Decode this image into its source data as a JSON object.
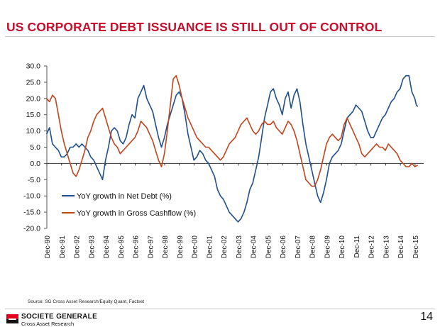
{
  "header": {
    "title": "US CORPORATE DEBT ISSUANCE IS STILL OUT OF CONTROL"
  },
  "footer": {
    "source": "Source: SG Cross Asset Research/Equity Quant, Factset",
    "brand": "SOCIETE GENERALE",
    "brand_sub": "Cross Asset Research",
    "page_number": "14"
  },
  "colors": {
    "title": "#c8102e",
    "net_debt": "#1f4e8c",
    "gross_cashflow": "#c0441c"
  },
  "chart_data": {
    "type": "line",
    "title": "",
    "xlabel": "",
    "ylabel": "",
    "ylim": [
      -20,
      30
    ],
    "xlim": [
      1990.917,
      2016.5
    ],
    "grid": false,
    "legend": "inside-lower-left",
    "y_ticks": [
      "30.0",
      "25.0",
      "20.0",
      "15.0",
      "10.0",
      "5.0",
      "0.0",
      "-5.0",
      "-10.0",
      "-15.0",
      "-20.0"
    ],
    "y_tick_values": [
      30,
      25,
      20,
      15,
      10,
      5,
      0,
      -5,
      -10,
      -15,
      -20
    ],
    "x_ticks": [
      "Dec-90",
      "Dec-91",
      "Dec-92",
      "Dec-93",
      "Dec-94",
      "Dec-95",
      "Dec-96",
      "Dec-97",
      "Dec-98",
      "Dec-99",
      "Dec-00",
      "Dec-01",
      "Dec-02",
      "Dec-03",
      "Dec-04",
      "Dec-05",
      "Dec-06",
      "Dec-07",
      "Dec-08",
      "Dec-09",
      "Dec-10",
      "Dec-11",
      "Dec-12",
      "Dec-13",
      "Dec-14",
      "Dec-15"
    ],
    "x_tick_values": [
      1990.917,
      1991.917,
      1992.917,
      1993.917,
      1994.917,
      1995.917,
      1996.917,
      1997.917,
      1998.917,
      1999.917,
      2000.917,
      2001.917,
      2002.917,
      2003.917,
      2004.917,
      2005.917,
      2006.917,
      2007.917,
      2008.917,
      2009.917,
      2010.917,
      2011.917,
      2012.917,
      2013.917,
      2014.917,
      2015.917
    ],
    "series": [
      {
        "name": "YoY growth in Net Debt (%)",
        "color": "#1f4e8c",
        "points": [
          [
            1990.9,
            9
          ],
          [
            1991.1,
            11
          ],
          [
            1991.3,
            6
          ],
          [
            1991.5,
            5
          ],
          [
            1991.7,
            4
          ],
          [
            1991.9,
            2
          ],
          [
            1992.1,
            2
          ],
          [
            1992.3,
            3
          ],
          [
            1992.5,
            5
          ],
          [
            1992.7,
            5
          ],
          [
            1992.9,
            6
          ],
          [
            1993.1,
            5
          ],
          [
            1993.3,
            6
          ],
          [
            1993.5,
            5
          ],
          [
            1993.7,
            4
          ],
          [
            1993.9,
            2
          ],
          [
            1994.1,
            1
          ],
          [
            1994.3,
            -1
          ],
          [
            1994.5,
            -3
          ],
          [
            1994.7,
            -5
          ],
          [
            1994.9,
            1
          ],
          [
            1995.1,
            5
          ],
          [
            1995.3,
            10
          ],
          [
            1995.5,
            11
          ],
          [
            1995.7,
            10
          ],
          [
            1995.9,
            7
          ],
          [
            1996.1,
            6
          ],
          [
            1996.3,
            8
          ],
          [
            1996.5,
            12
          ],
          [
            1996.7,
            15
          ],
          [
            1996.9,
            14
          ],
          [
            1997.1,
            20
          ],
          [
            1997.3,
            22
          ],
          [
            1997.5,
            24
          ],
          [
            1997.7,
            20
          ],
          [
            1997.9,
            18
          ],
          [
            1998.1,
            16
          ],
          [
            1998.3,
            12
          ],
          [
            1998.5,
            8
          ],
          [
            1998.7,
            5
          ],
          [
            1998.9,
            8
          ],
          [
            1999.1,
            12
          ],
          [
            1999.3,
            15
          ],
          [
            1999.5,
            18
          ],
          [
            1999.7,
            21
          ],
          [
            1999.9,
            22
          ],
          [
            2000.1,
            20
          ],
          [
            2000.3,
            15
          ],
          [
            2000.5,
            9
          ],
          [
            2000.7,
            5
          ],
          [
            2000.9,
            1
          ],
          [
            2001.1,
            2
          ],
          [
            2001.3,
            4
          ],
          [
            2001.5,
            3
          ],
          [
            2001.7,
            1
          ],
          [
            2001.9,
            0
          ],
          [
            2002.1,
            -2
          ],
          [
            2002.3,
            -4
          ],
          [
            2002.5,
            -8
          ],
          [
            2002.7,
            -10
          ],
          [
            2002.9,
            -11
          ],
          [
            2003.1,
            -13
          ],
          [
            2003.3,
            -15
          ],
          [
            2003.5,
            -16
          ],
          [
            2003.7,
            -17
          ],
          [
            2003.9,
            -18
          ],
          [
            2004.1,
            -17
          ],
          [
            2004.3,
            -15
          ],
          [
            2004.5,
            -12
          ],
          [
            2004.7,
            -8
          ],
          [
            2004.9,
            -6
          ],
          [
            2005.1,
            -2
          ],
          [
            2005.3,
            2
          ],
          [
            2005.5,
            8
          ],
          [
            2005.7,
            14
          ],
          [
            2005.9,
            18
          ],
          [
            2006.1,
            22
          ],
          [
            2006.3,
            23
          ],
          [
            2006.5,
            20
          ],
          [
            2006.7,
            18
          ],
          [
            2006.9,
            15
          ],
          [
            2007.1,
            20
          ],
          [
            2007.3,
            22
          ],
          [
            2007.5,
            17
          ],
          [
            2007.7,
            21
          ],
          [
            2007.9,
            23
          ],
          [
            2008.1,
            19
          ],
          [
            2008.3,
            12
          ],
          [
            2008.5,
            6
          ],
          [
            2008.7,
            2
          ],
          [
            2008.9,
            -2
          ],
          [
            2009.1,
            -6
          ],
          [
            2009.3,
            -10
          ],
          [
            2009.5,
            -12
          ],
          [
            2009.7,
            -9
          ],
          [
            2009.9,
            -5
          ],
          [
            2010.1,
            0
          ],
          [
            2010.3,
            2
          ],
          [
            2010.5,
            3
          ],
          [
            2010.7,
            4
          ],
          [
            2010.9,
            6
          ],
          [
            2011.1,
            10
          ],
          [
            2011.3,
            14
          ],
          [
            2011.5,
            15
          ],
          [
            2011.7,
            16
          ],
          [
            2011.9,
            18
          ],
          [
            2012.1,
            17
          ],
          [
            2012.3,
            16
          ],
          [
            2012.5,
            13
          ],
          [
            2012.7,
            10
          ],
          [
            2012.9,
            8
          ],
          [
            2013.1,
            8
          ],
          [
            2013.3,
            10
          ],
          [
            2013.5,
            12
          ],
          [
            2013.7,
            14
          ],
          [
            2013.9,
            15
          ],
          [
            2014.1,
            17
          ],
          [
            2014.3,
            19
          ],
          [
            2014.5,
            20
          ],
          [
            2014.7,
            22
          ],
          [
            2014.9,
            23
          ],
          [
            2015.1,
            26
          ],
          [
            2015.3,
            27
          ],
          [
            2015.5,
            27
          ],
          [
            2015.7,
            22
          ],
          [
            2015.9,
            20
          ],
          [
            2016.0,
            18
          ],
          [
            2016.1,
            17.5
          ]
        ]
      },
      {
        "name": "YoY growth in Gross Cashflow (%)",
        "color": "#c0441c",
        "points": [
          [
            1990.9,
            20
          ],
          [
            1991.1,
            19
          ],
          [
            1991.3,
            21
          ],
          [
            1991.5,
            20
          ],
          [
            1991.7,
            15
          ],
          [
            1991.9,
            10
          ],
          [
            1992.1,
            6
          ],
          [
            1992.3,
            3
          ],
          [
            1992.5,
            0
          ],
          [
            1992.7,
            -3
          ],
          [
            1992.9,
            -4
          ],
          [
            1993.1,
            -2
          ],
          [
            1993.3,
            1
          ],
          [
            1993.5,
            4
          ],
          [
            1993.7,
            8
          ],
          [
            1993.9,
            10
          ],
          [
            1994.1,
            13
          ],
          [
            1994.3,
            15
          ],
          [
            1994.5,
            16
          ],
          [
            1994.7,
            17
          ],
          [
            1994.9,
            14
          ],
          [
            1995.1,
            11
          ],
          [
            1995.3,
            8
          ],
          [
            1995.5,
            6
          ],
          [
            1995.7,
            5
          ],
          [
            1995.9,
            3
          ],
          [
            1996.1,
            4
          ],
          [
            1996.3,
            5
          ],
          [
            1996.5,
            6
          ],
          [
            1996.7,
            7
          ],
          [
            1996.9,
            8
          ],
          [
            1997.1,
            10
          ],
          [
            1997.3,
            13
          ],
          [
            1997.5,
            12
          ],
          [
            1997.7,
            11
          ],
          [
            1997.9,
            9
          ],
          [
            1998.1,
            7
          ],
          [
            1998.3,
            4
          ],
          [
            1998.5,
            1
          ],
          [
            1998.7,
            -1
          ],
          [
            1998.9,
            3
          ],
          [
            1999.1,
            10
          ],
          [
            1999.3,
            18
          ],
          [
            1999.5,
            26
          ],
          [
            1999.7,
            27
          ],
          [
            1999.9,
            24
          ],
          [
            2000.1,
            20
          ],
          [
            2000.3,
            17
          ],
          [
            2000.5,
            14
          ],
          [
            2000.7,
            12
          ],
          [
            2000.9,
            10
          ],
          [
            2001.1,
            8
          ],
          [
            2001.3,
            7
          ],
          [
            2001.5,
            6
          ],
          [
            2001.7,
            5
          ],
          [
            2001.9,
            5
          ],
          [
            2002.1,
            4
          ],
          [
            2002.3,
            3
          ],
          [
            2002.5,
            2
          ],
          [
            2002.7,
            1
          ],
          [
            2002.9,
            2
          ],
          [
            2003.1,
            4
          ],
          [
            2003.3,
            6
          ],
          [
            2003.5,
            7
          ],
          [
            2003.7,
            8
          ],
          [
            2003.9,
            10
          ],
          [
            2004.1,
            12
          ],
          [
            2004.3,
            13
          ],
          [
            2004.5,
            14
          ],
          [
            2004.7,
            12
          ],
          [
            2004.9,
            10
          ],
          [
            2005.1,
            9
          ],
          [
            2005.3,
            10
          ],
          [
            2005.5,
            12
          ],
          [
            2005.7,
            13
          ],
          [
            2005.9,
            12
          ],
          [
            2006.1,
            12
          ],
          [
            2006.3,
            13
          ],
          [
            2006.5,
            11
          ],
          [
            2006.7,
            10
          ],
          [
            2006.9,
            9
          ],
          [
            2007.1,
            11
          ],
          [
            2007.3,
            13
          ],
          [
            2007.5,
            12
          ],
          [
            2007.7,
            10
          ],
          [
            2007.9,
            7
          ],
          [
            2008.1,
            3
          ],
          [
            2008.3,
            -1
          ],
          [
            2008.5,
            -5
          ],
          [
            2008.7,
            -6
          ],
          [
            2008.9,
            -7
          ],
          [
            2009.1,
            -7
          ],
          [
            2009.3,
            -5
          ],
          [
            2009.5,
            -2
          ],
          [
            2009.7,
            2
          ],
          [
            2009.9,
            6
          ],
          [
            2010.1,
            8
          ],
          [
            2010.3,
            9
          ],
          [
            2010.5,
            8
          ],
          [
            2010.7,
            7
          ],
          [
            2010.9,
            8
          ],
          [
            2011.1,
            12
          ],
          [
            2011.3,
            14
          ],
          [
            2011.5,
            12
          ],
          [
            2011.7,
            10
          ],
          [
            2011.9,
            8
          ],
          [
            2012.1,
            6
          ],
          [
            2012.3,
            3
          ],
          [
            2012.5,
            2
          ],
          [
            2012.7,
            3
          ],
          [
            2012.9,
            4
          ],
          [
            2013.1,
            5
          ],
          [
            2013.3,
            6
          ],
          [
            2013.5,
            5
          ],
          [
            2013.7,
            5
          ],
          [
            2013.9,
            4
          ],
          [
            2014.1,
            6
          ],
          [
            2014.3,
            5
          ],
          [
            2014.5,
            4
          ],
          [
            2014.7,
            3
          ],
          [
            2014.9,
            1
          ],
          [
            2015.1,
            0
          ],
          [
            2015.3,
            -1
          ],
          [
            2015.5,
            -1
          ],
          [
            2015.7,
            0
          ],
          [
            2015.9,
            -1
          ],
          [
            2016.1,
            -0.5
          ]
        ]
      }
    ]
  }
}
